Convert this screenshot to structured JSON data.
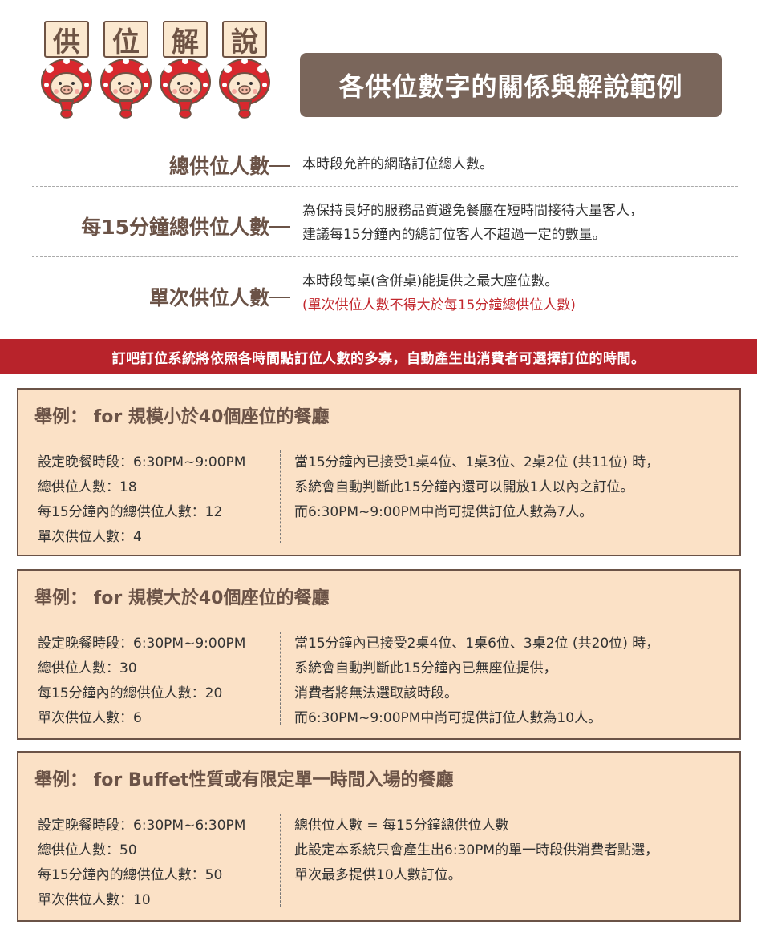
{
  "header": {
    "sign_chars": [
      "供",
      "位",
      "解",
      "說"
    ],
    "title": "各供位數字的關係與解說範例"
  },
  "definitions": [
    {
      "term": "總供位人數",
      "lines": [
        "本時段允許的網路訂位總人數。"
      ],
      "note": ""
    },
    {
      "term": "每15分鐘總供位人數",
      "lines": [
        "為保持良好的服務品質避免餐廳在短時間接待大量客人，",
        "建議每15分鐘內的總訂位客人不超過一定的數量。"
      ],
      "note": ""
    },
    {
      "term": "單次供位人數",
      "lines": [
        "本時段每桌(含併桌)能提供之最大座位數。"
      ],
      "note": "(單次供位人數不得大於每15分鐘總供位人數)"
    }
  ],
  "banner": "訂吧訂位系統將依照各時間點訂位人數的多寡，自動產生出消費者可選擇訂位的時間。",
  "examples": [
    {
      "title": "舉例： for 規模小於40個座位的餐廳",
      "left": [
        "設定晚餐時段：6:30PM~9:00PM",
        "總供位人數：18",
        "每15分鐘內的總供位人數：12",
        "單次供位人數：4"
      ],
      "right": [
        "當15分鐘內已接受1桌4位、1桌3位、2桌2位 (共11位) 時，",
        "系統會自動判斷此15分鐘內還可以開放1人以內之訂位。",
        "而6:30PM~9:00PM中尚可提供訂位人數為7人。"
      ]
    },
    {
      "title": "舉例： for 規模大於40個座位的餐廳",
      "left": [
        "設定晚餐時段：6:30PM~9:00PM",
        "總供位人數：30",
        "每15分鐘內的總供位人數：20",
        "單次供位人數：6"
      ],
      "right": [
        "當15分鐘內已接受2桌4位、1桌6位、3桌2位 (共20位) 時，",
        "系統會自動判斷此15分鐘內已無座位提供，",
        "消費者將無法選取該時段。",
        "而6:30PM~9:00PM中尚可提供訂位人數為10人。"
      ]
    },
    {
      "title": "舉例： for Buffet性質或有限定單一時間入場的餐廳",
      "left": [
        "設定晚餐時段：6:30PM~6:30PM",
        "總供位人數：50",
        "每15分鐘內的總供位人數：50",
        "單次供位人數：10"
      ],
      "right": [
        "總供位人數 = 每15分鐘總供位人數",
        "此設定本系統只會產生出6:30PM的單一時段供消費者點選，",
        "單次最多提供10人數訂位。"
      ]
    }
  ],
  "colors": {
    "title_bg": "#7a665b",
    "banner_bg": "#b8232b",
    "box_bg": "#fbe1c6",
    "term": "#6b5347",
    "note_red": "#c2272d"
  }
}
